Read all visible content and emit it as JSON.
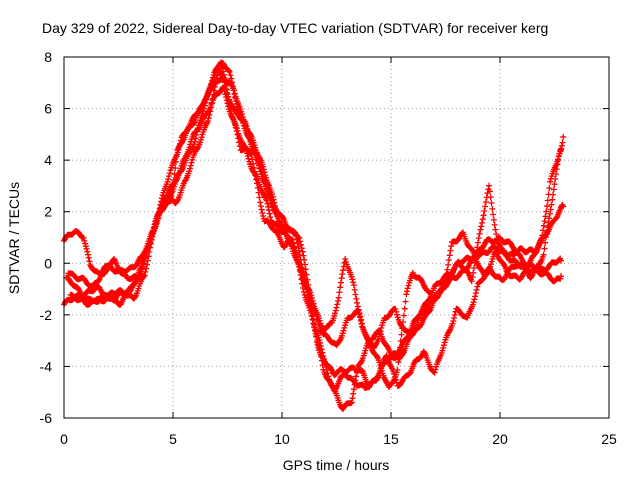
{
  "chart_data": {
    "type": "scatter",
    "title": "Day 329 of 2022, Sidereal Day-to-day VTEC variation (SDTVAR) for receiver kerg",
    "xlabel": "GPS time / hours",
    "ylabel": "SDTVAR / TECUs",
    "xlim": [
      0,
      25
    ],
    "ylim": [
      -6,
      8
    ],
    "xticks": [
      "0",
      "5",
      "10",
      "15",
      "20",
      "25"
    ],
    "yticks": [
      "-6",
      "-4",
      "-2",
      "0",
      "2",
      "4",
      "6",
      "8"
    ],
    "grid": true,
    "marker": "plus",
    "colors": {
      "series": "#ff0000",
      "grid": "#a0a0a0",
      "axis": "#000000"
    },
    "series": [
      {
        "name": "track-1",
        "points": [
          [
            0.0,
            -1.6
          ],
          [
            0.8,
            -1.2
          ],
          [
            1.6,
            -1.0
          ],
          [
            2.3,
            -1.4
          ],
          [
            3.0,
            -1.0
          ],
          [
            3.5,
            -0.3
          ],
          [
            4.0,
            1.0
          ],
          [
            4.5,
            2.3
          ],
          [
            5.0,
            3.0
          ],
          [
            5.5,
            4.0
          ],
          [
            6.0,
            5.0
          ],
          [
            6.5,
            5.8
          ],
          [
            7.0,
            6.5
          ],
          [
            7.3,
            6.8
          ],
          [
            7.6,
            6.0
          ],
          [
            8.0,
            5.0
          ],
          [
            8.5,
            4.0
          ],
          [
            9.0,
            3.0
          ],
          [
            9.3,
            2.3
          ],
          [
            9.5,
            1.7
          ],
          [
            10.0,
            1.3
          ],
          [
            10.6,
            1.2
          ],
          [
            11.0,
            -0.4
          ],
          [
            11.5,
            -2.5
          ],
          [
            12.0,
            -3.8
          ],
          [
            12.4,
            -4.3
          ],
          [
            12.8,
            -4.2
          ],
          [
            13.3,
            -4.0
          ],
          [
            13.7,
            -4.3
          ],
          [
            14.0,
            -4.8
          ],
          [
            14.6,
            -4.0
          ],
          [
            15.2,
            -3.5
          ],
          [
            15.8,
            -2.8
          ],
          [
            16.4,
            -1.8
          ],
          [
            17.0,
            -1.0
          ],
          [
            17.6,
            -0.4
          ],
          [
            18.2,
            0.0
          ],
          [
            18.8,
            0.3
          ],
          [
            19.4,
            0.8
          ],
          [
            20.0,
            1.0
          ],
          [
            20.6,
            0.6
          ],
          [
            21.2,
            0.0
          ],
          [
            21.8,
            -0.3
          ],
          [
            22.4,
            0.0
          ],
          [
            22.8,
            0.1
          ]
        ]
      },
      {
        "name": "track-2",
        "points": [
          [
            0.3,
            -1.2
          ],
          [
            1.0,
            -1.6
          ],
          [
            1.8,
            -1.3
          ],
          [
            2.6,
            -1.5
          ],
          [
            3.3,
            -0.8
          ],
          [
            3.8,
            0.5
          ],
          [
            4.3,
            1.8
          ],
          [
            4.8,
            2.6
          ],
          [
            5.4,
            3.6
          ],
          [
            6.0,
            4.8
          ],
          [
            6.6,
            6.5
          ],
          [
            7.0,
            7.6
          ],
          [
            7.3,
            7.8
          ],
          [
            7.6,
            7.3
          ],
          [
            8.0,
            6.0
          ],
          [
            8.5,
            4.8
          ],
          [
            9.2,
            3.3
          ],
          [
            9.6,
            2.2
          ],
          [
            10.2,
            1.5
          ],
          [
            10.8,
            1.0
          ],
          [
            11.2,
            -0.8
          ],
          [
            11.6,
            -3.0
          ],
          [
            12.2,
            -4.6
          ],
          [
            12.8,
            -5.6
          ],
          [
            13.2,
            -5.4
          ],
          [
            13.5,
            -4.0
          ],
          [
            14.0,
            -3.0
          ],
          [
            14.5,
            -2.7
          ],
          [
            15.0,
            -3.5
          ],
          [
            15.4,
            -3.8
          ],
          [
            15.8,
            -3.0
          ],
          [
            16.4,
            -2.0
          ],
          [
            17.0,
            -1.3
          ],
          [
            17.6,
            -0.8
          ],
          [
            18.4,
            -0.2
          ],
          [
            19.0,
            0.3
          ],
          [
            19.6,
            0.6
          ],
          [
            20.2,
            0.4
          ],
          [
            20.8,
            0.0
          ],
          [
            21.4,
            -0.5
          ],
          [
            22.0,
            0.3
          ],
          [
            22.4,
            2.5
          ],
          [
            22.7,
            4.2
          ],
          [
            22.9,
            4.9
          ]
        ]
      },
      {
        "name": "track-3",
        "points": [
          [
            0.0,
            0.9
          ],
          [
            0.5,
            1.2
          ],
          [
            0.9,
            1.1
          ],
          [
            1.2,
            -0.1
          ],
          [
            1.6,
            -0.5
          ],
          [
            2.1,
            -0.1
          ],
          [
            2.5,
            -0.4
          ],
          [
            3.0,
            -0.2
          ],
          [
            3.6,
            0.2
          ],
          [
            4.1,
            1.3
          ],
          [
            4.6,
            2.8
          ],
          [
            5.0,
            3.8
          ],
          [
            5.4,
            4.9
          ],
          [
            5.9,
            5.5
          ],
          [
            6.4,
            6.2
          ],
          [
            6.9,
            7.3
          ],
          [
            7.2,
            7.8
          ],
          [
            7.5,
            6.6
          ],
          [
            7.9,
            5.8
          ],
          [
            8.3,
            5.4
          ],
          [
            8.8,
            4.2
          ],
          [
            9.3,
            2.8
          ],
          [
            9.8,
            1.8
          ],
          [
            10.4,
            0.7
          ],
          [
            10.9,
            -0.4
          ],
          [
            11.3,
            -1.2
          ],
          [
            11.8,
            -2.5
          ],
          [
            12.3,
            -2.3
          ],
          [
            12.6,
            -1.4
          ],
          [
            12.9,
            0.2
          ],
          [
            13.3,
            -0.8
          ],
          [
            13.7,
            -2.6
          ],
          [
            14.2,
            -3.3
          ],
          [
            14.7,
            -2.2
          ],
          [
            15.2,
            -1.8
          ],
          [
            15.6,
            -2.6
          ],
          [
            16.1,
            -2.7
          ],
          [
            16.6,
            -2.0
          ],
          [
            17.1,
            -1.3
          ],
          [
            17.6,
            -0.5
          ],
          [
            18.1,
            0.0
          ],
          [
            18.7,
            -0.6
          ],
          [
            19.1,
            1.3
          ],
          [
            19.5,
            2.9
          ],
          [
            19.9,
            0.8
          ],
          [
            20.4,
            0.2
          ],
          [
            21.0,
            0.6
          ],
          [
            21.6,
            0.4
          ],
          [
            22.1,
            1.2
          ],
          [
            22.6,
            1.8
          ],
          [
            22.9,
            2.2
          ]
        ]
      },
      {
        "name": "track-4",
        "points": [
          [
            0.2,
            -0.3
          ],
          [
            0.7,
            -0.6
          ],
          [
            1.3,
            -0.9
          ],
          [
            1.9,
            -0.2
          ],
          [
            2.3,
            0.1
          ],
          [
            2.9,
            -0.6
          ],
          [
            3.4,
            -0.6
          ],
          [
            3.9,
            0.7
          ],
          [
            4.4,
            2.0
          ],
          [
            4.9,
            2.5
          ],
          [
            5.2,
            4.3
          ],
          [
            5.7,
            5.2
          ],
          [
            6.2,
            5.9
          ],
          [
            6.8,
            6.8
          ],
          [
            7.1,
            7.5
          ],
          [
            7.4,
            7.1
          ],
          [
            7.8,
            6.7
          ],
          [
            8.2,
            5.7
          ],
          [
            8.7,
            4.6
          ],
          [
            9.1,
            3.8
          ],
          [
            9.4,
            3.1
          ],
          [
            9.9,
            1.5
          ],
          [
            10.3,
            1.0
          ],
          [
            10.7,
            0.3
          ],
          [
            11.1,
            -0.8
          ],
          [
            11.4,
            -1.6
          ],
          [
            11.9,
            -2.8
          ],
          [
            12.5,
            -3.2
          ],
          [
            13.0,
            -2.2
          ],
          [
            13.5,
            -1.9
          ],
          [
            13.9,
            -2.9
          ],
          [
            14.4,
            -3.8
          ],
          [
            14.9,
            -4.8
          ],
          [
            15.3,
            -4.2
          ],
          [
            15.7,
            -1.2
          ],
          [
            16.0,
            -0.3
          ],
          [
            16.3,
            -0.6
          ],
          [
            16.9,
            -1.4
          ],
          [
            17.4,
            -1.0
          ],
          [
            17.8,
            0.7
          ],
          [
            18.3,
            1.2
          ],
          [
            18.9,
            0.1
          ],
          [
            19.3,
            -0.5
          ],
          [
            19.8,
            0.4
          ],
          [
            20.3,
            -0.3
          ],
          [
            20.9,
            -0.6
          ],
          [
            21.5,
            -0.2
          ],
          [
            22.0,
            -0.4
          ],
          [
            22.5,
            -0.7
          ],
          [
            22.8,
            -0.5
          ]
        ]
      },
      {
        "name": "track-5",
        "points": [
          [
            0.1,
            -0.6
          ],
          [
            0.6,
            -1.0
          ],
          [
            1.1,
            -1.4
          ],
          [
            1.7,
            -1.5
          ],
          [
            2.2,
            -1.1
          ],
          [
            2.8,
            -1.2
          ],
          [
            3.2,
            -1.3
          ],
          [
            3.7,
            -0.5
          ],
          [
            4.2,
            1.6
          ],
          [
            4.6,
            2.5
          ],
          [
            5.1,
            2.3
          ],
          [
            5.6,
            3.3
          ],
          [
            6.1,
            4.4
          ],
          [
            6.6,
            5.6
          ],
          [
            7.0,
            7.0
          ],
          [
            7.3,
            7.2
          ],
          [
            7.7,
            5.9
          ],
          [
            8.1,
            4.4
          ],
          [
            8.6,
            4.3
          ],
          [
            9.0,
            2.4
          ],
          [
            9.2,
            1.6
          ],
          [
            9.7,
            1.3
          ],
          [
            10.1,
            0.7
          ],
          [
            10.5,
            0.9
          ],
          [
            11.0,
            -1.0
          ],
          [
            11.4,
            -2.2
          ],
          [
            11.9,
            -4.1
          ],
          [
            12.4,
            -4.9
          ],
          [
            12.9,
            -4.3
          ],
          [
            13.4,
            -4.6
          ],
          [
            13.8,
            -4.9
          ],
          [
            14.3,
            -4.5
          ],
          [
            14.8,
            -3.6
          ],
          [
            15.3,
            -4.7
          ],
          [
            15.9,
            -4.2
          ],
          [
            16.5,
            -3.4
          ],
          [
            17.0,
            -4.3
          ],
          [
            17.5,
            -3.0
          ],
          [
            18.0,
            -1.8
          ],
          [
            18.5,
            -2.2
          ],
          [
            19.0,
            -0.8
          ],
          [
            19.5,
            -0.3
          ],
          [
            20.1,
            -0.6
          ],
          [
            20.7,
            -0.1
          ],
          [
            21.3,
            -0.1
          ],
          [
            21.9,
            0.8
          ],
          [
            22.3,
            3.2
          ],
          [
            22.8,
            4.4
          ]
        ]
      }
    ]
  }
}
